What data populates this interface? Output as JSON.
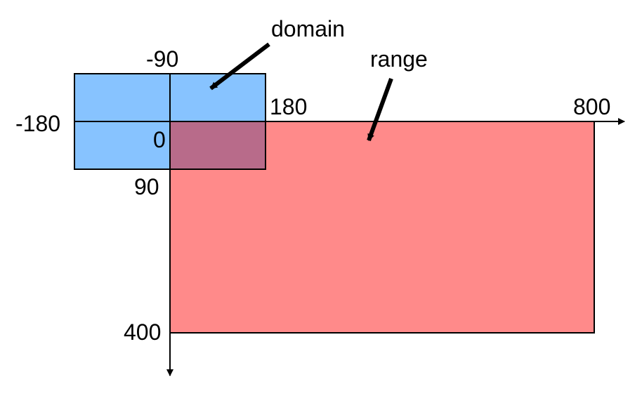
{
  "labels": {
    "domain": "domain",
    "range": "range",
    "lat_min": "-90",
    "lon_min": "-180",
    "lon_max": "180",
    "origin": "0",
    "lat_max": "90",
    "width": "800",
    "height": "400"
  },
  "colors": {
    "domain_fill": "#87C3FF",
    "range_fill": "#FF8A8A",
    "overlap_fill": "#B86B8A",
    "stroke": "#000000"
  }
}
